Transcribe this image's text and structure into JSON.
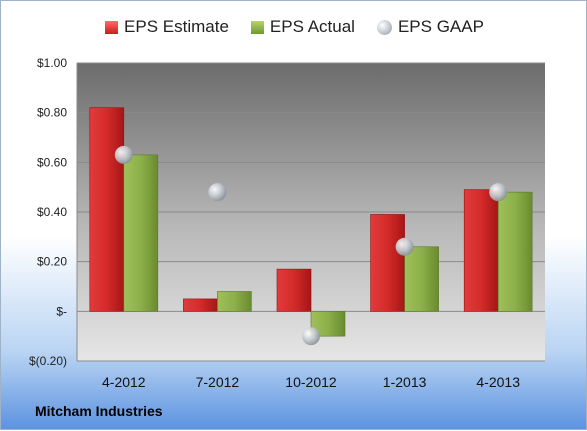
{
  "chart_data": {
    "type": "bar",
    "categories": [
      "4-2012",
      "7-2012",
      "10-2012",
      "1-2013",
      "4-2013"
    ],
    "series": [
      {
        "name": "EPS Estimate",
        "values": [
          0.82,
          0.05,
          0.17,
          0.39,
          0.49
        ],
        "color": "#d42a2a"
      },
      {
        "name": "EPS Actual",
        "values": [
          0.63,
          0.08,
          -0.1,
          0.26,
          0.48
        ],
        "color": "#8db04a"
      },
      {
        "name": "EPS GAAP",
        "values": [
          0.63,
          0.48,
          -0.1,
          0.26,
          0.48
        ],
        "color": "#c3c8cf"
      }
    ],
    "yticks": [
      1.0,
      0.8,
      0.6,
      0.4,
      0.2,
      0.0,
      -0.2
    ],
    "ytick_labels": [
      "$1.00",
      "$0.80",
      "$0.60",
      "$0.40",
      "$0.20",
      "$-",
      "$(0.20)"
    ],
    "ylim": [
      -0.2,
      1.0
    ],
    "grid": true,
    "legend_position": "top"
  },
  "footer": {
    "company": "Mitcham Industries"
  }
}
